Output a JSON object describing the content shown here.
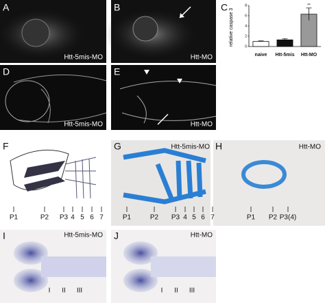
{
  "panels": [
    {
      "label": "A",
      "caption": "Htt-5mis-MO"
    },
    {
      "label": "B",
      "caption": "Htt-MO"
    },
    {
      "label": "D",
      "caption": "Htt-5mis-MO"
    },
    {
      "label": "E",
      "caption": "Htt-MO"
    },
    {
      "label": "F",
      "markers": [
        "P1",
        "P2",
        "P3",
        "4",
        "5",
        "6",
        "7"
      ]
    },
    {
      "label": "G",
      "caption": "Htt-5mis-MO",
      "markers": [
        "P1",
        "P2",
        "P3",
        "4",
        "5",
        "6",
        "7"
      ]
    },
    {
      "label": "H",
      "caption": "Htt-MO",
      "markers": [
        "P1",
        "P2",
        "P3(4)"
      ]
    },
    {
      "label": "I",
      "caption": "Htt-5mis-MO",
      "markers": [
        "I",
        "II",
        "III"
      ]
    },
    {
      "label": "J",
      "caption": "Htt-MO",
      "markers": [
        "I",
        "II",
        "III"
      ]
    }
  ],
  "chart_data": {
    "type": "bar",
    "panel": "C",
    "y_label": "relative caspase 3",
    "categories": [
      "naive",
      "Htt-5mis",
      "Htt-MO"
    ],
    "values": [
      1,
      1.3,
      6.3
    ],
    "errors": [
      0.1,
      0.2,
      1.2
    ],
    "colors": [
      "#ffffff",
      "#111111",
      "#999999"
    ],
    "annotations": [
      null,
      null,
      "**"
    ],
    "ylim": [
      0,
      8
    ],
    "yticks": [
      0,
      2,
      4,
      6,
      8
    ]
  }
}
